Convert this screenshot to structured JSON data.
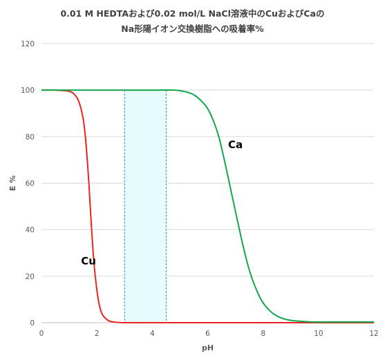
{
  "title_line1": "0.01 M HEDTAおよび0.02 mol/L NaCl溶液中のCuおよびCaの",
  "title_line2": "Na形陽イオン交換樹脂への吸着率%",
  "chart_data": {
    "type": "line",
    "xlabel": "pH",
    "ylabel": "E %",
    "xlim": [
      0,
      12
    ],
    "ylim": [
      0,
      120
    ],
    "xticks": [
      0,
      2,
      4,
      6,
      8,
      10,
      12
    ],
    "yticks": [
      0,
      20,
      40,
      60,
      80,
      100,
      120
    ],
    "grid": "horizontal",
    "legend": "none",
    "series": [
      {
        "name": "Cu",
        "color": "#e8231e",
        "x": [
          0,
          0.5,
          1.0,
          1.2,
          1.35,
          1.5,
          1.6,
          1.7,
          1.75,
          1.8,
          1.85,
          1.9,
          2.0,
          2.1,
          2.2,
          2.4,
          2.6,
          2.8,
          3.0,
          4.0,
          6.0,
          8.0,
          10.0,
          12.0
        ],
        "y": [
          100,
          100,
          99.5,
          98,
          95,
          88,
          78,
          62,
          52,
          42,
          33,
          25,
          14,
          7,
          3.5,
          1,
          0.3,
          0.1,
          0,
          0,
          0,
          0,
          0,
          0
        ]
      },
      {
        "name": "Ca",
        "color": "#12a64a",
        "x": [
          0,
          2,
          4,
          4.8,
          5.2,
          5.5,
          5.8,
          6.0,
          6.2,
          6.4,
          6.6,
          6.8,
          7.0,
          7.2,
          7.4,
          7.6,
          7.8,
          8.0,
          8.3,
          8.6,
          9.0,
          9.5,
          10.0,
          12.0
        ],
        "y": [
          100,
          100,
          100,
          100,
          99.3,
          98,
          95,
          92,
          87,
          80,
          70,
          59,
          48,
          37,
          27,
          19,
          13,
          8.5,
          4.5,
          2.3,
          1.0,
          0.5,
          0.3,
          0.3
        ]
      }
    ],
    "annotations": [
      {
        "text": "Cu",
        "x": 1.7,
        "y": 25
      },
      {
        "text": "Ca",
        "x": 7.0,
        "y": 75
      }
    ],
    "shaded_region": {
      "x": [
        3.0,
        4.5
      ],
      "color": "#e6fbfd",
      "border_color": "#2e86c1"
    }
  }
}
